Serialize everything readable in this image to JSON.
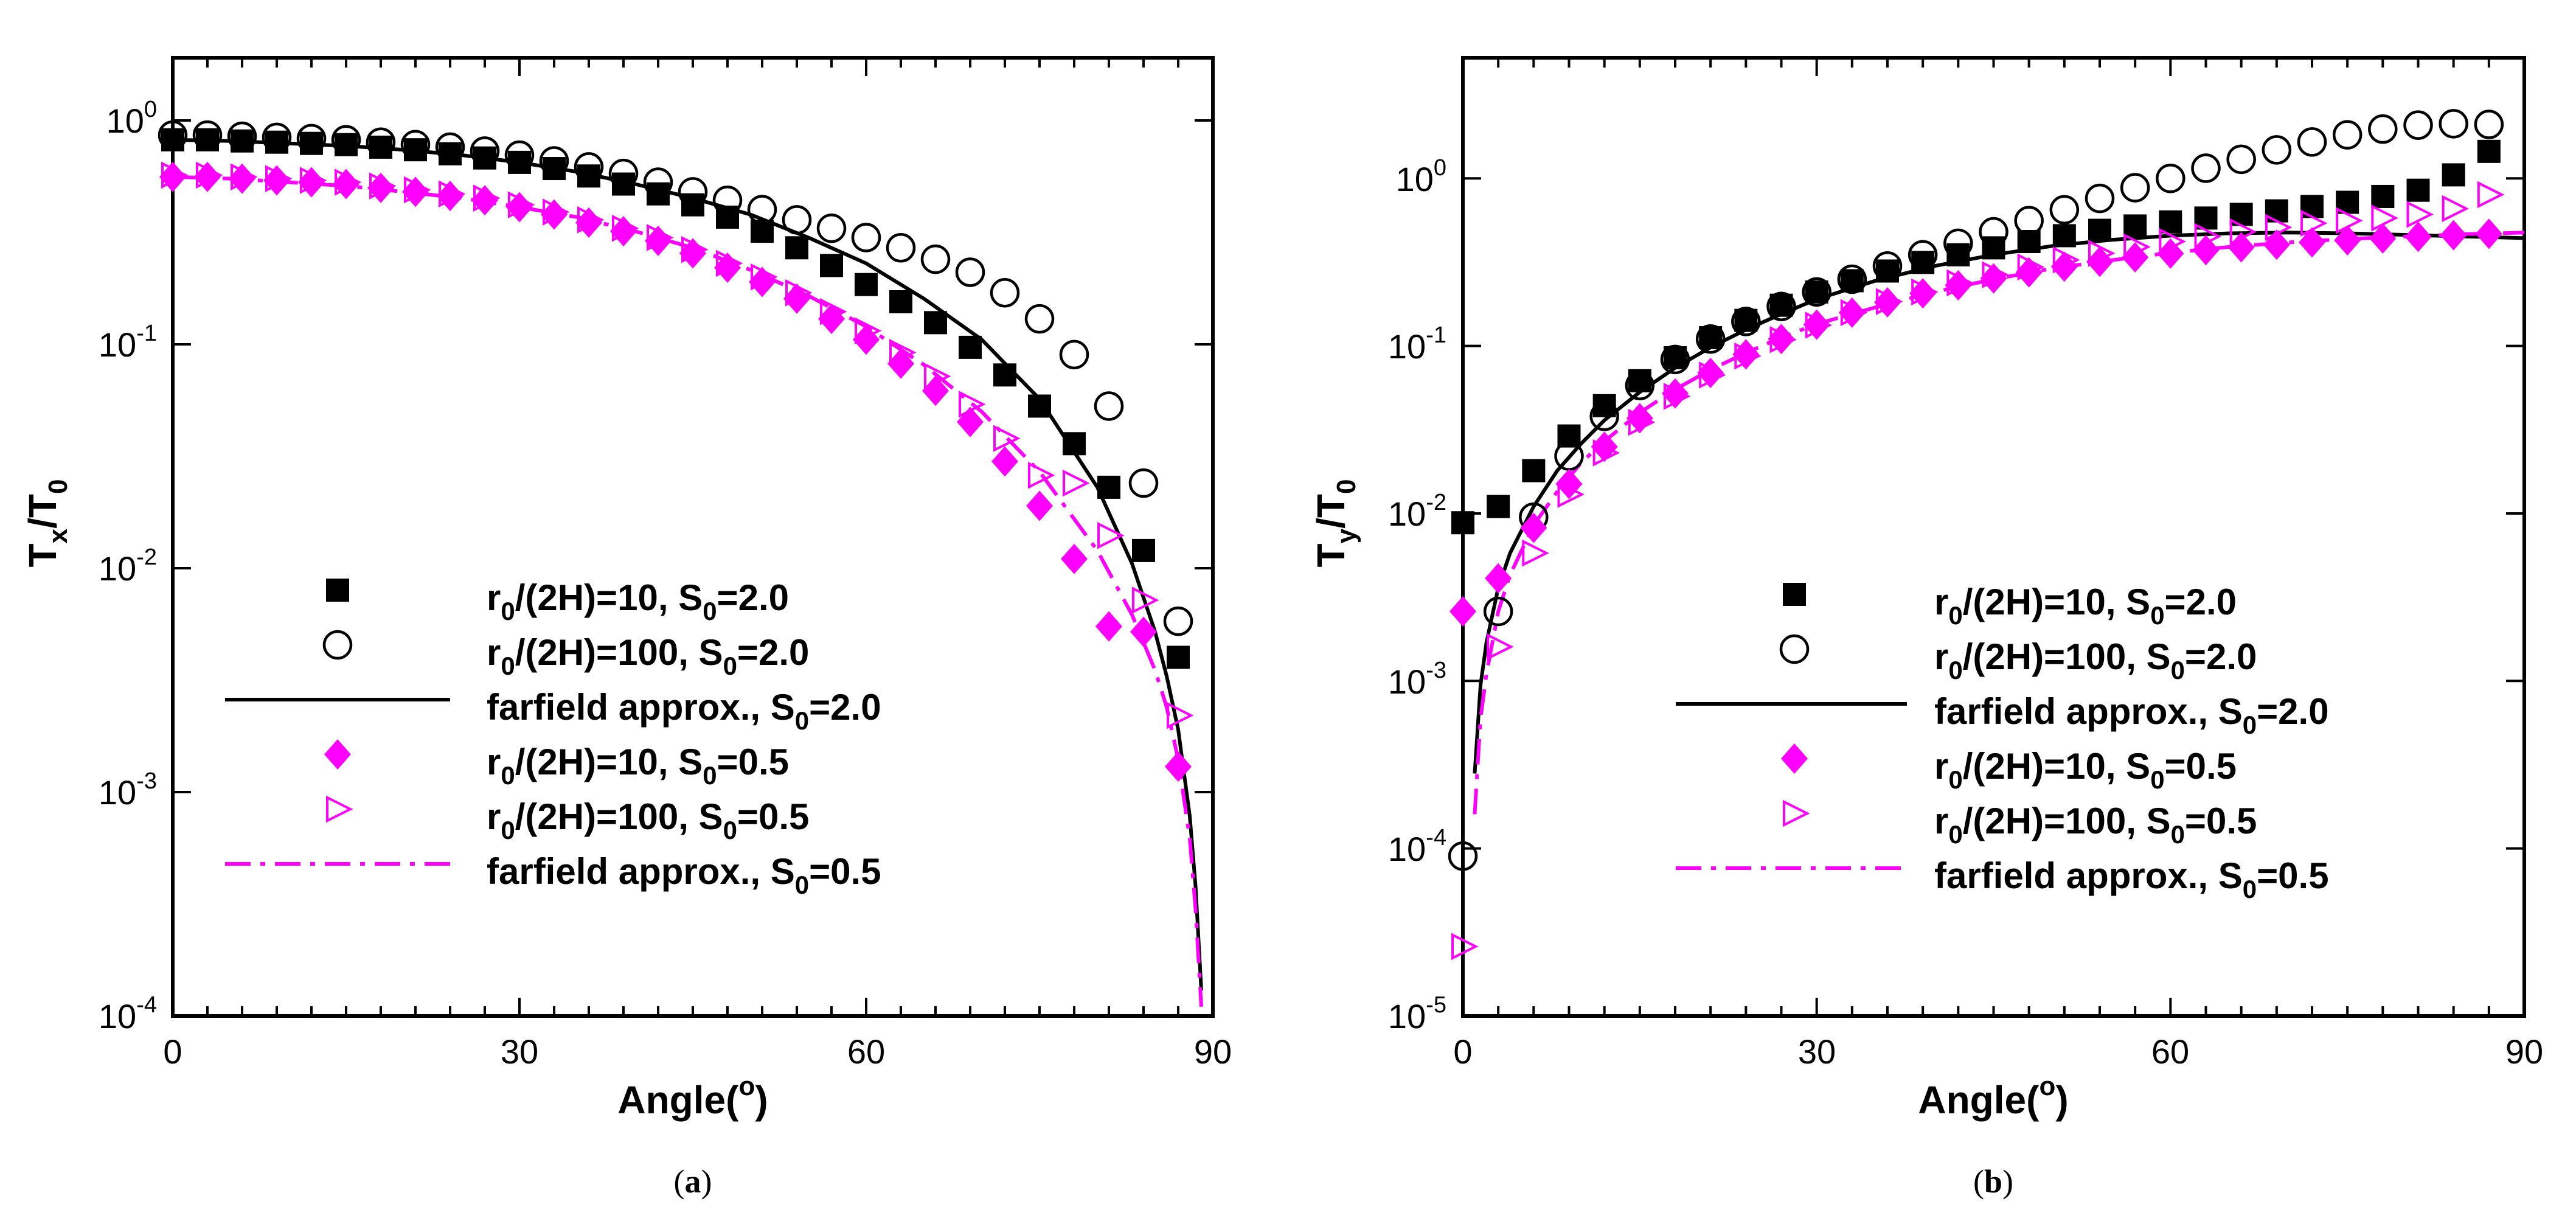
{
  "chart_data": [
    {
      "type": "scatter",
      "panel_caption": {
        "open": "(",
        "letter": "a",
        "close": ")"
      },
      "xlabel": "Angle(°)",
      "xlabel_parts": {
        "main": "Angle(",
        "sup": "o",
        "close": ")"
      },
      "ylabel_parts": {
        "main": "T",
        "sub": "x",
        "slash": "/T",
        "sub2": "0"
      },
      "y_scale": "log",
      "xlim": [
        0,
        90
      ],
      "ylim_log10": [
        -4,
        0.28
      ],
      "xticks": [
        {
          "label": "0",
          "value": 0
        },
        {
          "label": "30",
          "value": 30
        },
        {
          "label": "60",
          "value": 60
        },
        {
          "label": "90",
          "value": 90
        }
      ],
      "yticks": [
        {
          "exp": -4,
          "base": "10",
          "power": "-4"
        },
        {
          "exp": -3,
          "base": "10",
          "power": "-3"
        },
        {
          "exp": -2,
          "base": "10",
          "power": "-2"
        },
        {
          "exp": -1,
          "base": "10",
          "power": "-1"
        },
        {
          "exp": 0,
          "base": "10",
          "power": "0"
        }
      ],
      "legend_position": "lower-left",
      "series": [
        {
          "name": "r0/(2H)=10, S0=2.0",
          "label": {
            "a": "r",
            "a_sub": "0",
            "b": "/(2H)=10, S",
            "b_sub": "0",
            "c": "=2.0"
          },
          "marker": "square",
          "color": "#000000",
          "x": [
            0,
            3,
            6,
            9,
            12,
            15,
            18,
            21,
            24,
            27,
            30,
            33,
            36,
            39,
            42,
            45,
            48,
            51,
            54,
            57,
            60,
            63,
            66,
            69,
            72,
            75,
            78,
            81,
            84,
            87
          ],
          "y": [
            0.82,
            0.82,
            0.81,
            0.8,
            0.79,
            0.78,
            0.76,
            0.74,
            0.71,
            0.68,
            0.65,
            0.61,
            0.565,
            0.52,
            0.47,
            0.42,
            0.37,
            0.32,
            0.27,
            0.225,
            0.185,
            0.155,
            0.125,
            0.097,
            0.073,
            0.053,
            0.036,
            0.023,
            0.012,
            0.004
          ]
        },
        {
          "name": "r0/(2H)=100, S0=2.0",
          "label": {
            "a": "r",
            "a_sub": "0",
            "b": "/(2H)=100, S",
            "b_sub": "0",
            "c": "=2.0"
          },
          "marker": "circle-open",
          "color": "#000000",
          "x": [
            0,
            3,
            6,
            9,
            12,
            15,
            18,
            21,
            24,
            27,
            30,
            33,
            36,
            39,
            42,
            45,
            48,
            51,
            54,
            57,
            60,
            63,
            66,
            69,
            72,
            75,
            78,
            81,
            84,
            87
          ],
          "y": [
            0.86,
            0.86,
            0.85,
            0.84,
            0.83,
            0.82,
            0.8,
            0.78,
            0.76,
            0.73,
            0.7,
            0.66,
            0.62,
            0.58,
            0.53,
            0.48,
            0.44,
            0.4,
            0.36,
            0.33,
            0.3,
            0.27,
            0.24,
            0.21,
            0.17,
            0.13,
            0.09,
            0.053,
            0.024,
            0.0058
          ]
        },
        {
          "name": "farfield approx., S0=2.0",
          "label": {
            "a": "farfield approx., S",
            "a_sub": "0",
            "b": "=2.0",
            "b_sub": "",
            "c": ""
          },
          "marker": "line-solid",
          "color": "#000000",
          "x": [
            0,
            5,
            10,
            15,
            20,
            25,
            30,
            35,
            40,
            45,
            50,
            55,
            60,
            65,
            70,
            75,
            80,
            83,
            85,
            86,
            87,
            88,
            88.5,
            89
          ],
          "y": [
            0.82,
            0.81,
            0.79,
            0.77,
            0.74,
            0.7,
            0.65,
            0.59,
            0.52,
            0.45,
            0.38,
            0.3,
            0.23,
            0.16,
            0.105,
            0.057,
            0.023,
            0.0105,
            0.0052,
            0.0033,
            0.0019,
            0.00078,
            0.00038,
            0.00013
          ]
        },
        {
          "name": "r0/(2H)=10, S0=0.5",
          "label": {
            "a": "r",
            "a_sub": "0",
            "b": "/(2H)=10, S",
            "b_sub": "0",
            "c": "=0.5"
          },
          "marker": "diamond",
          "color": "#ff00ff",
          "x": [
            0,
            3,
            6,
            9,
            12,
            15,
            18,
            21,
            24,
            27,
            30,
            33,
            36,
            39,
            42,
            45,
            48,
            51,
            54,
            57,
            60,
            63,
            66,
            69,
            72,
            75,
            78,
            81,
            84,
            87
          ],
          "y": [
            0.56,
            0.56,
            0.55,
            0.54,
            0.53,
            0.52,
            0.5,
            0.48,
            0.46,
            0.44,
            0.41,
            0.38,
            0.35,
            0.32,
            0.29,
            0.255,
            0.22,
            0.19,
            0.16,
            0.13,
            0.105,
            0.082,
            0.062,
            0.045,
            0.03,
            0.019,
            0.011,
            0.0055,
            0.0052,
            0.0013
          ]
        },
        {
          "name": "r0/(2H)=100, S0=0.5",
          "label": {
            "a": "r",
            "a_sub": "0",
            "b": "/(2H)=100, S",
            "b_sub": "0",
            "c": "=0.5"
          },
          "marker": "triangle-right-open",
          "color": "#ff00ff",
          "x": [
            0,
            3,
            6,
            9,
            12,
            15,
            18,
            21,
            24,
            27,
            30,
            33,
            36,
            39,
            42,
            45,
            48,
            51,
            54,
            57,
            60,
            63,
            66,
            69,
            72,
            75,
            78,
            81,
            84,
            87
          ],
          "y": [
            0.57,
            0.57,
            0.56,
            0.55,
            0.54,
            0.53,
            0.51,
            0.49,
            0.47,
            0.45,
            0.42,
            0.39,
            0.36,
            0.33,
            0.3,
            0.265,
            0.23,
            0.2,
            0.17,
            0.14,
            0.115,
            0.092,
            0.072,
            0.054,
            0.038,
            0.026,
            0.024,
            0.014,
            0.0072,
            0.0022
          ]
        },
        {
          "name": "farfield approx., S0=0.5",
          "label": {
            "a": "farfield approx., S",
            "a_sub": "0",
            "b": "=0.5",
            "b_sub": "",
            "c": ""
          },
          "marker": "line-dashdot",
          "color": "#ff00ff",
          "x": [
            0,
            5,
            10,
            15,
            20,
            25,
            30,
            35,
            40,
            45,
            50,
            55,
            60,
            65,
            70,
            75,
            80,
            83,
            85,
            86,
            87,
            88,
            88.5,
            89
          ],
          "y": [
            0.56,
            0.55,
            0.53,
            0.51,
            0.48,
            0.45,
            0.41,
            0.37,
            0.32,
            0.27,
            0.215,
            0.165,
            0.12,
            0.081,
            0.05,
            0.027,
            0.012,
            0.0062,
            0.0035,
            0.0024,
            0.0014,
            0.00062,
            0.0003,
            0.00011
          ]
        }
      ]
    },
    {
      "type": "scatter",
      "panel_caption": {
        "open": "(",
        "letter": "b",
        "close": ")"
      },
      "xlabel": "Angle(°)",
      "xlabel_parts": {
        "main": "Angle(",
        "sup": "o",
        "close": ")"
      },
      "ylabel_parts": {
        "main": "T",
        "sub": "y",
        "slash": "/T",
        "sub2": "0"
      },
      "y_scale": "log",
      "xlim": [
        0,
        90
      ],
      "ylim_log10": [
        -5,
        0.72
      ],
      "xticks": [
        {
          "label": "0",
          "value": 0
        },
        {
          "label": "30",
          "value": 30
        },
        {
          "label": "60",
          "value": 60
        },
        {
          "label": "90",
          "value": 90
        }
      ],
      "yticks": [
        {
          "exp": -5,
          "base": "10",
          "power": "-5"
        },
        {
          "exp": -4,
          "base": "10",
          "power": "-4"
        },
        {
          "exp": -3,
          "base": "10",
          "power": "-3"
        },
        {
          "exp": -2,
          "base": "10",
          "power": "-2"
        },
        {
          "exp": -1,
          "base": "10",
          "power": "-1"
        },
        {
          "exp": 0,
          "base": "10",
          "power": "0"
        }
      ],
      "legend_position": "lower-right",
      "series": [
        {
          "name": "r0/(2H)=10, S0=2.0",
          "label": {
            "a": "r",
            "a_sub": "0",
            "b": "/(2H)=10, S",
            "b_sub": "0",
            "c": "=2.0"
          },
          "marker": "square",
          "color": "#000000",
          "x": [
            0,
            3,
            6,
            9,
            12,
            15,
            18,
            21,
            24,
            27,
            30,
            33,
            36,
            39,
            42,
            45,
            48,
            51,
            54,
            57,
            60,
            63,
            66,
            69,
            72,
            75,
            78,
            81,
            84,
            87
          ],
          "y": [
            0.0088,
            0.011,
            0.018,
            0.029,
            0.044,
            0.062,
            0.085,
            0.112,
            0.142,
            0.175,
            0.21,
            0.245,
            0.28,
            0.315,
            0.35,
            0.385,
            0.42,
            0.455,
            0.49,
            0.52,
            0.55,
            0.58,
            0.61,
            0.64,
            0.68,
            0.72,
            0.78,
            0.85,
            1.05,
            1.45
          ]
        },
        {
          "name": "r0/(2H)=100, S0=2.0",
          "label": {
            "a": "r",
            "a_sub": "0",
            "b": "/(2H)=100, S",
            "b_sub": "0",
            "c": "=2.0"
          },
          "marker": "circle-open",
          "color": "#000000",
          "x": [
            0,
            3,
            6,
            9,
            12,
            15,
            18,
            21,
            24,
            27,
            30,
            33,
            36,
            39,
            42,
            45,
            48,
            51,
            54,
            57,
            60,
            63,
            66,
            69,
            72,
            75,
            78,
            81,
            84,
            87
          ],
          "y": [
            9e-05,
            0.0026,
            0.0095,
            0.022,
            0.038,
            0.058,
            0.083,
            0.11,
            0.14,
            0.172,
            0.21,
            0.25,
            0.3,
            0.35,
            0.41,
            0.48,
            0.56,
            0.65,
            0.76,
            0.88,
            1.0,
            1.15,
            1.3,
            1.48,
            1.65,
            1.82,
            1.97,
            2.08,
            2.12,
            2.1
          ]
        },
        {
          "name": "farfield approx., S0=2.0",
          "label": {
            "a": "farfield approx., S",
            "a_sub": "0",
            "b": "=2.0",
            "b_sub": "",
            "c": ""
          },
          "marker": "line-solid",
          "color": "#000000",
          "x": [
            1,
            1.5,
            2,
            3,
            4,
            6,
            8,
            10,
            12,
            15,
            18,
            21,
            24,
            27,
            30,
            35,
            40,
            45,
            50,
            55,
            60,
            65,
            70,
            75,
            80,
            85,
            90
          ],
          "y": [
            0.00028,
            0.00095,
            0.0017,
            0.0036,
            0.0058,
            0.011,
            0.018,
            0.026,
            0.036,
            0.053,
            0.074,
            0.098,
            0.125,
            0.155,
            0.19,
            0.245,
            0.3,
            0.35,
            0.395,
            0.43,
            0.455,
            0.47,
            0.475,
            0.47,
            0.46,
            0.45,
            0.44
          ]
        },
        {
          "name": "r0/(2H)=10, S0=0.5",
          "label": {
            "a": "r",
            "a_sub": "0",
            "b": "/(2H)=10, S",
            "b_sub": "0",
            "c": "=0.5"
          },
          "marker": "diamond",
          "color": "#ff00ff",
          "x": [
            0,
            3,
            6,
            9,
            12,
            15,
            18,
            21,
            24,
            27,
            30,
            33,
            36,
            39,
            42,
            45,
            48,
            51,
            54,
            57,
            60,
            63,
            66,
            69,
            72,
            75,
            78,
            81,
            84,
            87
          ],
          "y": [
            0.0026,
            0.0041,
            0.0082,
            0.015,
            0.025,
            0.037,
            0.052,
            0.069,
            0.089,
            0.11,
            0.134,
            0.158,
            0.182,
            0.206,
            0.23,
            0.253,
            0.275,
            0.297,
            0.318,
            0.338,
            0.356,
            0.373,
            0.388,
            0.402,
            0.415,
            0.427,
            0.438,
            0.448,
            0.458,
            0.467
          ]
        },
        {
          "name": "r0/(2H)=100, S0=0.5",
          "label": {
            "a": "r",
            "a_sub": "0",
            "b": "/(2H)=100, S",
            "b_sub": "0",
            "c": "=0.5"
          },
          "marker": "triangle-right-open",
          "color": "#ff00ff",
          "x": [
            0,
            3,
            6,
            9,
            12,
            15,
            18,
            21,
            24,
            27,
            30,
            33,
            36,
            39,
            42,
            45,
            48,
            51,
            54,
            57,
            60,
            63,
            66,
            69,
            72,
            75,
            78,
            81,
            84,
            87
          ],
          "y": [
            2.6e-05,
            0.0016,
            0.0058,
            0.013,
            0.023,
            0.035,
            0.05,
            0.067,
            0.087,
            0.109,
            0.133,
            0.158,
            0.184,
            0.21,
            0.238,
            0.266,
            0.296,
            0.326,
            0.357,
            0.39,
            0.42,
            0.45,
            0.48,
            0.51,
            0.54,
            0.56,
            0.58,
            0.61,
            0.66,
            0.8
          ]
        },
        {
          "name": "farfield approx., S0=0.5",
          "label": {
            "a": "farfield approx., S",
            "a_sub": "0",
            "b": "=0.5",
            "b_sub": "",
            "c": ""
          },
          "marker": "line-dashdot",
          "color": "#ff00ff",
          "x": [
            1,
            1.5,
            2,
            3,
            4,
            6,
            8,
            10,
            12,
            15,
            18,
            21,
            24,
            27,
            30,
            35,
            40,
            45,
            50,
            55,
            60,
            65,
            70,
            75,
            80,
            85,
            90
          ],
          "y": [
            0.00016,
            0.0006,
            0.0011,
            0.0026,
            0.0043,
            0.0085,
            0.0135,
            0.02,
            0.027,
            0.04,
            0.055,
            0.072,
            0.091,
            0.112,
            0.135,
            0.17,
            0.21,
            0.25,
            0.29,
            0.325,
            0.36,
            0.39,
            0.415,
            0.435,
            0.45,
            0.465,
            0.475
          ]
        }
      ]
    }
  ]
}
